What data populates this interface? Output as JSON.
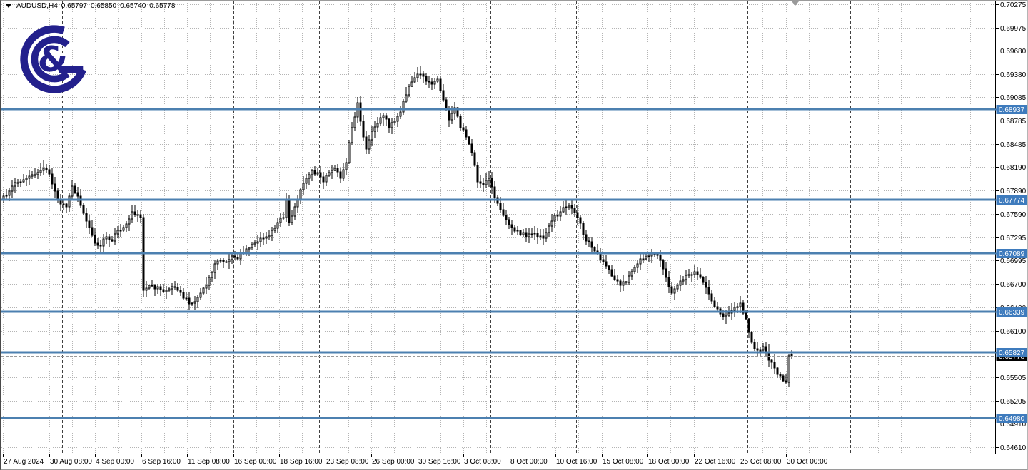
{
  "header": {
    "collapse_icon": "triangle-down",
    "symbol": "AUDUSD,H4",
    "open": "0.65797",
    "high": "0.65850",
    "low": "0.65740",
    "close": "0.65778"
  },
  "colors": {
    "level_blue_line": "#4c80b0",
    "level_label_bg": "#3e7bbd",
    "level_label_text": "#ffffff",
    "current_label_bg": "#000000",
    "current_label_text": "#ffffff",
    "current_line": "#999999",
    "grid": "#b4b4b4",
    "separator": "#404040",
    "axis_line": "#000000",
    "axis_text": "#000000",
    "candle_up_fill": "#ffffff",
    "candle_down_fill": "#000000",
    "candle_outline": "#000000",
    "logo_navy": "#23208c",
    "chart_bg": "#ffffff"
  },
  "chart_data": {
    "type": "candlestick",
    "symbol": "AUDUSD",
    "timeframe": "H4",
    "title": "AUDUSD,H4",
    "last_quote": {
      "open": 0.65797,
      "high": 0.6585,
      "low": 0.6574,
      "close": 0.65778
    },
    "current_bid": 0.65778,
    "y_axis": {
      "decimals": 5,
      "min": 0.6461,
      "max": 0.70275,
      "ticks": [
        0.70275,
        0.69975,
        0.6968,
        0.6938,
        0.69085,
        0.68785,
        0.68485,
        0.6819,
        0.6789,
        0.6759,
        0.67295,
        0.66995,
        0.667,
        0.664,
        0.661,
        0.65505,
        0.65205,
        0.6491,
        0.6461
      ],
      "grid_only_ticks": [
        0.658
      ]
    },
    "x_axis": {
      "labels": [
        "27 Aug 2024",
        "30 Aug 08:00",
        "4 Sep 00:00",
        "6 Sep 16:00",
        "11 Sep 08:00",
        "16 Sep 00:00",
        "18 Sep 16:00",
        "23 Sep 08:00",
        "26 Sep 00:00",
        "30 Sep 16:00",
        "3 Oct 08:00",
        "8 Oct 00:00",
        "10 Oct 16:00",
        "15 Oct 08:00",
        "18 Oct 00:00",
        "22 Oct 16:00",
        "25 Oct 08:00",
        "30 Oct 00:00"
      ],
      "bars_per_label": 16
    },
    "levels": [
      0.68937,
      0.67774,
      0.67089,
      0.66339,
      0.65827,
      0.6498
    ],
    "bars_total": 277,
    "week_separator_bars": [
      20.5,
      50.5,
      80.5,
      110.5,
      140.5,
      170.5,
      200.5,
      230.5,
      260.5,
      296.5
    ],
    "close_anchors": [
      [
        0,
        0.6782
      ],
      [
        3,
        0.6795
      ],
      [
        6,
        0.68
      ],
      [
        9,
        0.6808
      ],
      [
        12,
        0.6812
      ],
      [
        14,
        0.6818
      ],
      [
        16,
        0.681
      ],
      [
        18,
        0.6788
      ],
      [
        20,
        0.6772
      ],
      [
        22,
        0.6768
      ],
      [
        24,
        0.6795
      ],
      [
        26,
        0.6782
      ],
      [
        28,
        0.676
      ],
      [
        30,
        0.6742
      ],
      [
        32,
        0.6722
      ],
      [
        34,
        0.6718
      ],
      [
        36,
        0.673
      ],
      [
        38,
        0.6725
      ],
      [
        40,
        0.6738
      ],
      [
        42,
        0.6742
      ],
      [
        45,
        0.6762
      ],
      [
        47,
        0.6758
      ],
      [
        48,
        0.6755
      ],
      [
        49,
        0.6662
      ],
      [
        52,
        0.6668
      ],
      [
        56,
        0.666
      ],
      [
        60,
        0.6665
      ],
      [
        63,
        0.6652
      ],
      [
        66,
        0.6645
      ],
      [
        69,
        0.6658
      ],
      [
        72,
        0.6678
      ],
      [
        74,
        0.6695
      ],
      [
        76,
        0.67
      ],
      [
        78,
        0.6698
      ],
      [
        80,
        0.6705
      ],
      [
        82,
        0.6702
      ],
      [
        84,
        0.671
      ],
      [
        86,
        0.6716
      ],
      [
        88,
        0.6722
      ],
      [
        90,
        0.6728
      ],
      [
        92,
        0.673
      ],
      [
        94,
        0.6738
      ],
      [
        96,
        0.6748
      ],
      [
        98,
        0.6755
      ],
      [
        99,
        0.6778
      ],
      [
        100,
        0.6748
      ],
      [
        102,
        0.6768
      ],
      [
        104,
        0.679
      ],
      [
        106,
        0.6805
      ],
      [
        108,
        0.6815
      ],
      [
        110,
        0.6812
      ],
      [
        112,
        0.68
      ],
      [
        114,
        0.6812
      ],
      [
        116,
        0.6818
      ],
      [
        118,
        0.6805
      ],
      [
        120,
        0.6825
      ],
      [
        122,
        0.687
      ],
      [
        124,
        0.6902
      ],
      [
        125,
        0.6878
      ],
      [
        126,
        0.6858
      ],
      [
        127,
        0.6842
      ],
      [
        129,
        0.6865
      ],
      [
        131,
        0.6875
      ],
      [
        133,
        0.6885
      ],
      [
        135,
        0.687
      ],
      [
        137,
        0.6878
      ],
      [
        139,
        0.689
      ],
      [
        141,
        0.6912
      ],
      [
        143,
        0.6928
      ],
      [
        145,
        0.6938
      ],
      [
        147,
        0.6935
      ],
      [
        149,
        0.6928
      ],
      [
        150,
        0.6925
      ],
      [
        152,
        0.6932
      ],
      [
        154,
        0.6905
      ],
      [
        156,
        0.688
      ],
      [
        158,
        0.6895
      ],
      [
        160,
        0.687
      ],
      [
        162,
        0.6858
      ],
      [
        164,
        0.6838
      ],
      [
        166,
        0.68
      ],
      [
        168,
        0.6797
      ],
      [
        170,
        0.6805
      ],
      [
        172,
        0.678
      ],
      [
        174,
        0.6765
      ],
      [
        176,
        0.6752
      ],
      [
        178,
        0.6742
      ],
      [
        180,
        0.6738
      ],
      [
        183,
        0.673
      ],
      [
        186,
        0.6735
      ],
      [
        189,
        0.6728
      ],
      [
        192,
        0.675
      ],
      [
        195,
        0.6762
      ],
      [
        198,
        0.677
      ],
      [
        201,
        0.6755
      ],
      [
        204,
        0.6725
      ],
      [
        207,
        0.6712
      ],
      [
        210,
        0.6698
      ],
      [
        212,
        0.6688
      ],
      [
        214,
        0.6675
      ],
      [
        216,
        0.6668
      ],
      [
        218,
        0.6672
      ],
      [
        220,
        0.6685
      ],
      [
        222,
        0.6695
      ],
      [
        224,
        0.6702
      ],
      [
        226,
        0.6705
      ],
      [
        228,
        0.6708
      ],
      [
        230,
        0.67
      ],
      [
        232,
        0.6678
      ],
      [
        234,
        0.6658
      ],
      [
        236,
        0.6668
      ],
      [
        238,
        0.6675
      ],
      [
        240,
        0.6682
      ],
      [
        242,
        0.6685
      ],
      [
        244,
        0.6678
      ],
      [
        246,
        0.6665
      ],
      [
        248,
        0.6648
      ],
      [
        250,
        0.6638
      ],
      [
        252,
        0.6628
      ],
      [
        254,
        0.6632
      ],
      [
        256,
        0.664
      ],
      [
        258,
        0.6645
      ],
      [
        260,
        0.6625
      ],
      [
        262,
        0.6595
      ],
      [
        264,
        0.6585
      ],
      [
        266,
        0.659
      ],
      [
        268,
        0.6572
      ],
      [
        270,
        0.6562
      ],
      [
        272,
        0.6552
      ],
      [
        274,
        0.6544
      ],
      [
        275,
        0.6578
      ],
      [
        276,
        0.65778
      ]
    ]
  }
}
